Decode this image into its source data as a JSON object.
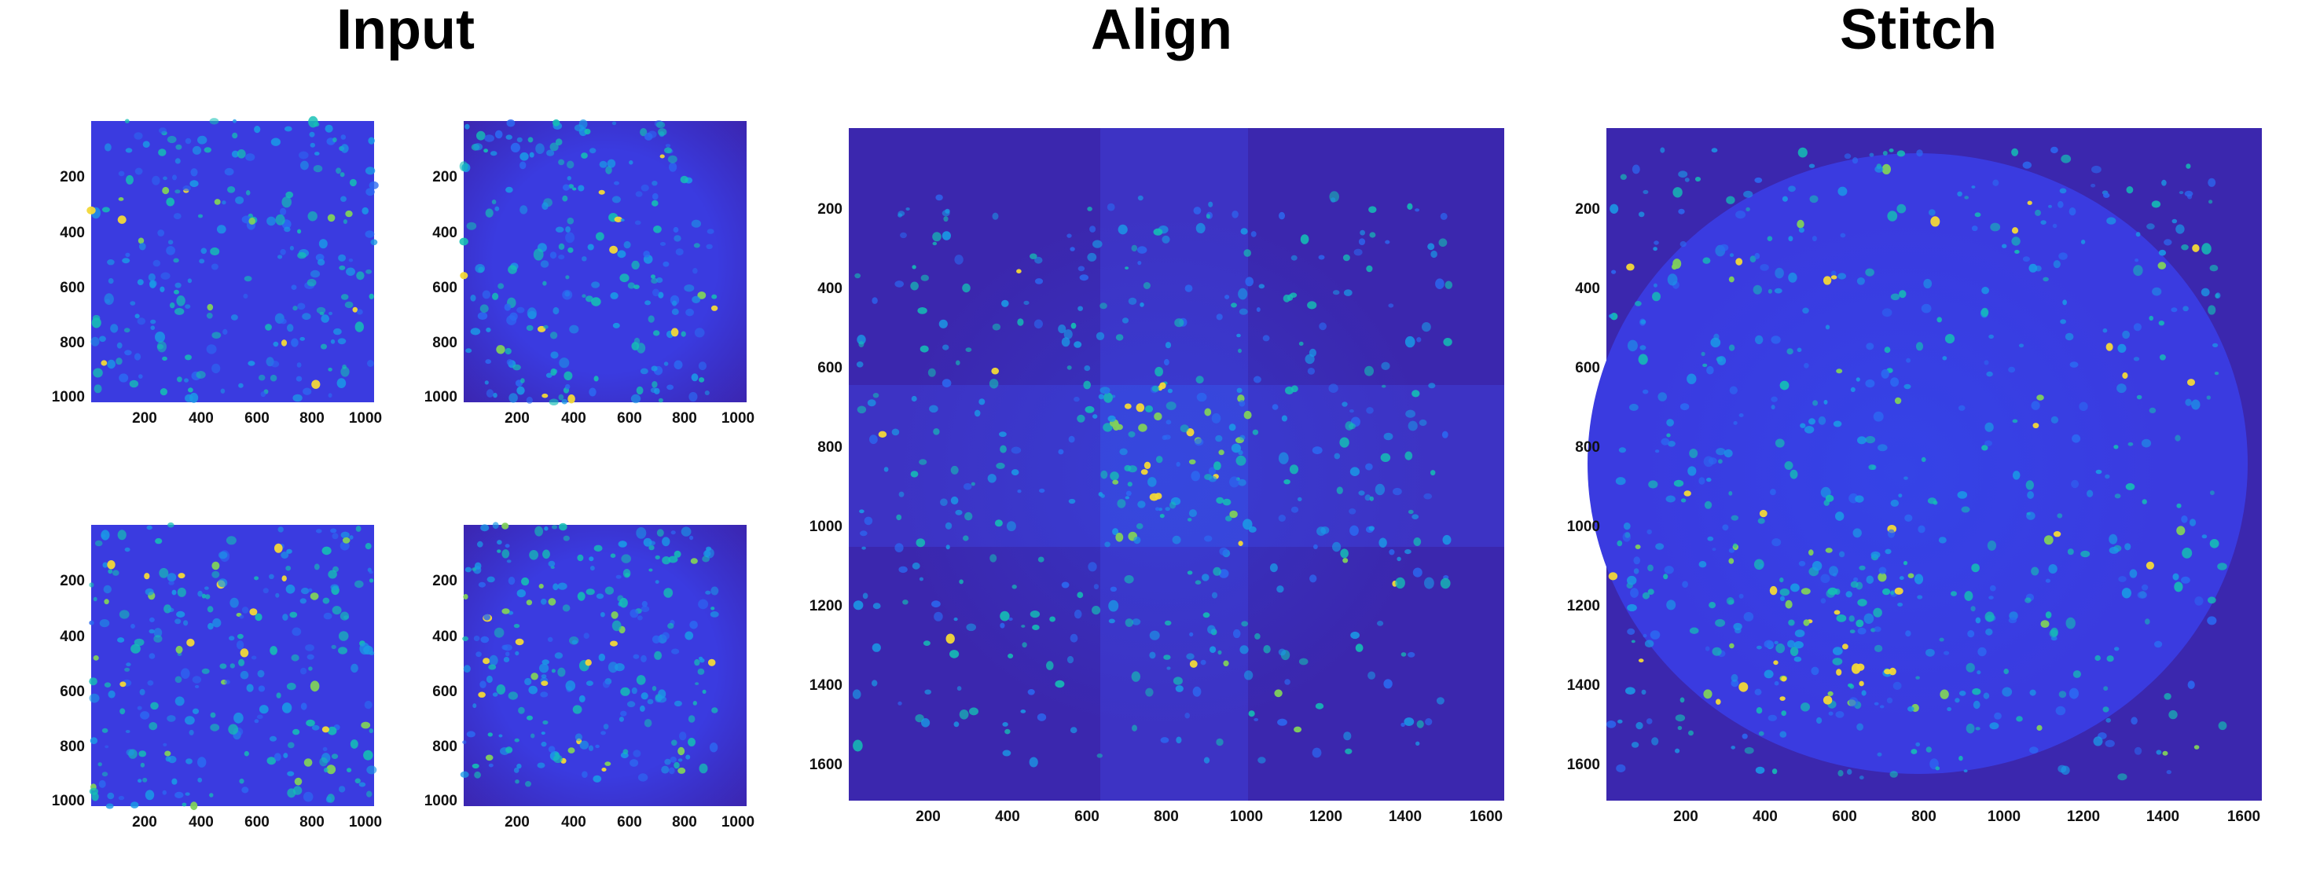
{
  "titles": {
    "input": "Input",
    "align": "Align",
    "stitch": "Stitch"
  },
  "colormap": [
    "#3b22a8",
    "#3a3be0",
    "#2b6af2",
    "#1a9ae6",
    "#14c0b4",
    "#7fd05c",
    "#f2d838"
  ],
  "panels": {
    "input_tl": {
      "xticks": [
        "200",
        "400",
        "600",
        "800",
        "1000"
      ],
      "yticks": [
        "200",
        "400",
        "600",
        "800",
        "1000"
      ]
    },
    "input_tr": {
      "xticks": [
        "200",
        "400",
        "600",
        "800",
        "1000"
      ],
      "yticks": [
        "200",
        "400",
        "600",
        "800",
        "1000"
      ]
    },
    "input_bl": {
      "xticks": [
        "200",
        "400",
        "600",
        "800",
        "1000"
      ],
      "yticks": [
        "200",
        "400",
        "600",
        "800",
        "1000"
      ]
    },
    "input_br": {
      "xticks": [
        "200",
        "400",
        "600",
        "800",
        "1000"
      ],
      "yticks": [
        "200",
        "400",
        "600",
        "800",
        "1000"
      ]
    },
    "align": {
      "xticks": [
        "200",
        "400",
        "600",
        "800",
        "1000",
        "1200",
        "1400",
        "1600"
      ],
      "yticks": [
        "200",
        "400",
        "600",
        "800",
        "1000",
        "1200",
        "1400",
        "1600"
      ]
    },
    "stitch": {
      "xticks": [
        "200",
        "400",
        "600",
        "800",
        "1000",
        "1200",
        "1400",
        "1600"
      ],
      "yticks": [
        "200",
        "400",
        "600",
        "800",
        "1000",
        "1200",
        "1400",
        "1600"
      ]
    }
  }
}
